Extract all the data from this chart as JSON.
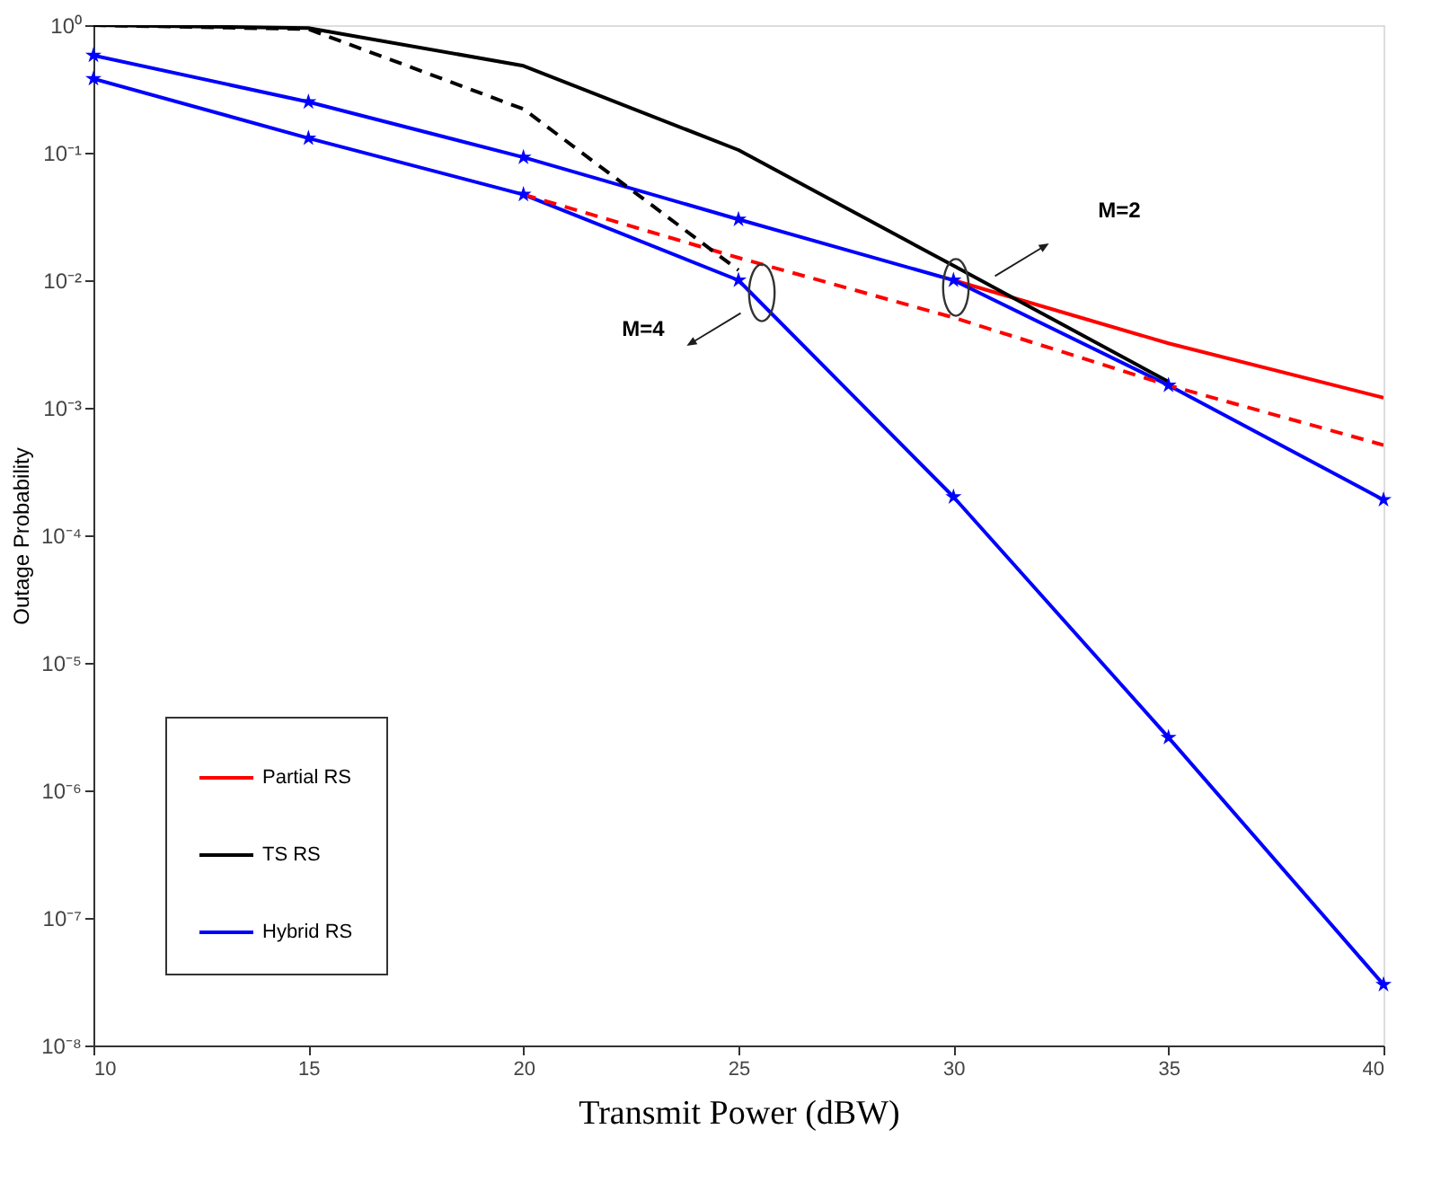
{
  "chart_data": {
    "type": "line",
    "xlabel": "Transmit Power (dBW)",
    "ylabel": "Outage Probability",
    "x": [
      10,
      15,
      20,
      25,
      30,
      35,
      40
    ],
    "series": [
      {
        "name": "Partial RS",
        "color": "#ff0000",
        "x": [
          30,
          35,
          40
        ],
        "values": [
          0.01,
          0.0032,
          0.0012
        ],
        "line_style": "solid"
      },
      {
        "color": "#ff0000",
        "x": [
          20,
          25,
          30,
          35,
          40
        ],
        "values": [
          0.047,
          0.015,
          0.0051,
          0.0015,
          0.00051
        ],
        "line_style": "dashed"
      },
      {
        "name": "TS RS",
        "color": "#000000",
        "x": [
          10,
          15,
          20,
          25,
          30,
          35
        ],
        "values": [
          1.0,
          0.95,
          0.48,
          0.105,
          0.013,
          0.0016
        ],
        "line_style": "solid"
      },
      {
        "color": "#000000",
        "x": [
          10,
          15,
          20,
          25
        ],
        "values": [
          1.0,
          0.93,
          0.22,
          0.012
        ],
        "line_style": "dashed"
      },
      {
        "name": "Hybrid RS",
        "color": "#0000ff",
        "values": [
          0.58,
          0.25,
          0.092,
          0.03,
          0.01,
          0.0015,
          0.00019
        ],
        "line_style": "solid",
        "marker": "star"
      },
      {
        "color": "#0000ff",
        "values": [
          0.38,
          0.13,
          0.047,
          0.01,
          0.0002,
          2.6e-06,
          3e-08
        ],
        "line_style": "solid",
        "marker": "star"
      }
    ],
    "log": "y",
    "xlim": [
      10,
      40
    ],
    "xticks": [
      10,
      15,
      20,
      25,
      30,
      35,
      40
    ],
    "ylim": [
      1e-08,
      1
    ],
    "yticks": [
      {
        "value": 1e-08,
        "label": "10⁻⁸"
      },
      {
        "value": 1e-07,
        "label": "10⁻⁷"
      },
      {
        "value": 1e-06,
        "label": "10⁻⁶"
      },
      {
        "value": 1e-05,
        "label": "10⁻⁵"
      },
      {
        "value": 0.0001,
        "label": "10⁻⁴"
      },
      {
        "value": 0.001,
        "label": "10⁻³"
      },
      {
        "value": 0.01,
        "label": "10⁻²"
      },
      {
        "value": 0.1,
        "label": "10⁻¹"
      },
      {
        "value": 1,
        "label": "10⁰"
      }
    ],
    "annotations": [
      "M=2",
      "M=4"
    ],
    "grid": false,
    "legend": "bottom left"
  }
}
